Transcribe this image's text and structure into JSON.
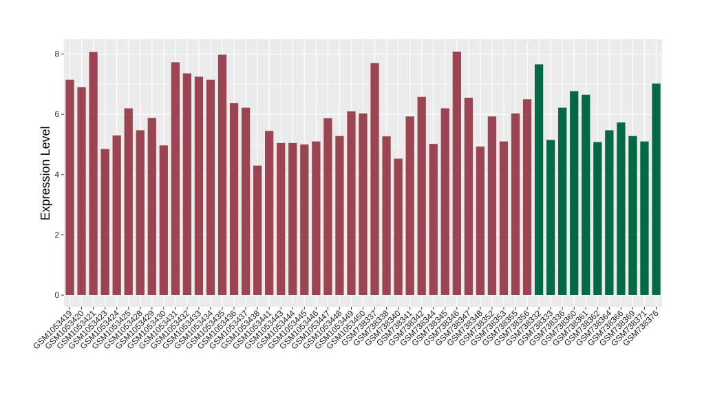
{
  "chart_data": {
    "type": "bar",
    "title": "",
    "xlabel": "",
    "ylabel": "Expression Level",
    "ylim": [
      0,
      8.35
    ],
    "yticks": [
      0,
      2,
      4,
      6,
      8
    ],
    "grid": true,
    "legend": "none",
    "colors": {
      "group1": "#9c4552",
      "group2": "#016a44",
      "panel": "#ebebeb",
      "grid": "#ffffff"
    },
    "categories": [
      "GSM1053419",
      "GSM1053420",
      "GSM1053421",
      "GSM1053423",
      "GSM1053424",
      "GSM1053425",
      "GSM1053428",
      "GSM1053429",
      "GSM1053430",
      "GSM1053431",
      "GSM1053432",
      "GSM1053433",
      "GSM1053434",
      "GSM1053435",
      "GSM1053436",
      "GSM1053437",
      "GSM1053438",
      "GSM1053441",
      "GSM1053443",
      "GSM1053444",
      "GSM1053445",
      "GSM1053446",
      "GSM1053447",
      "GSM1053448",
      "GSM1053449",
      "GSM1053450",
      "GSM738337",
      "GSM738338",
      "GSM738340",
      "GSM738341",
      "GSM738342",
      "GSM738344",
      "GSM738345",
      "GSM738346",
      "GSM738347",
      "GSM738348",
      "GSM738352",
      "GSM738353",
      "GSM738355",
      "GSM738356",
      "GSM738332",
      "GSM738333",
      "GSM738336",
      "GSM738360",
      "GSM738361",
      "GSM738362",
      "GSM738364",
      "GSM738366",
      "GSM738369",
      "GSM738371",
      "GSM738376"
    ],
    "values": [
      7.15,
      6.9,
      8.07,
      4.85,
      5.3,
      6.2,
      5.47,
      5.88,
      4.97,
      7.73,
      7.36,
      7.25,
      7.15,
      7.98,
      6.37,
      6.22,
      4.3,
      5.45,
      5.05,
      5.05,
      5.0,
      5.1,
      5.87,
      5.28,
      6.1,
      6.03,
      7.7,
      5.27,
      4.53,
      5.93,
      6.58,
      5.02,
      6.2,
      8.08,
      6.55,
      4.93,
      5.93,
      5.1,
      6.03,
      6.5,
      7.66,
      5.15,
      6.22,
      6.77,
      6.65,
      5.08,
      5.47,
      5.73,
      5.28,
      5.1,
      7.02
    ],
    "groups": [
      1,
      1,
      1,
      1,
      1,
      1,
      1,
      1,
      1,
      1,
      1,
      1,
      1,
      1,
      1,
      1,
      1,
      1,
      1,
      1,
      1,
      1,
      1,
      1,
      1,
      1,
      1,
      1,
      1,
      1,
      1,
      1,
      1,
      1,
      1,
      1,
      1,
      1,
      1,
      1,
      2,
      2,
      2,
      2,
      2,
      2,
      2,
      2,
      2,
      2,
      2
    ]
  }
}
